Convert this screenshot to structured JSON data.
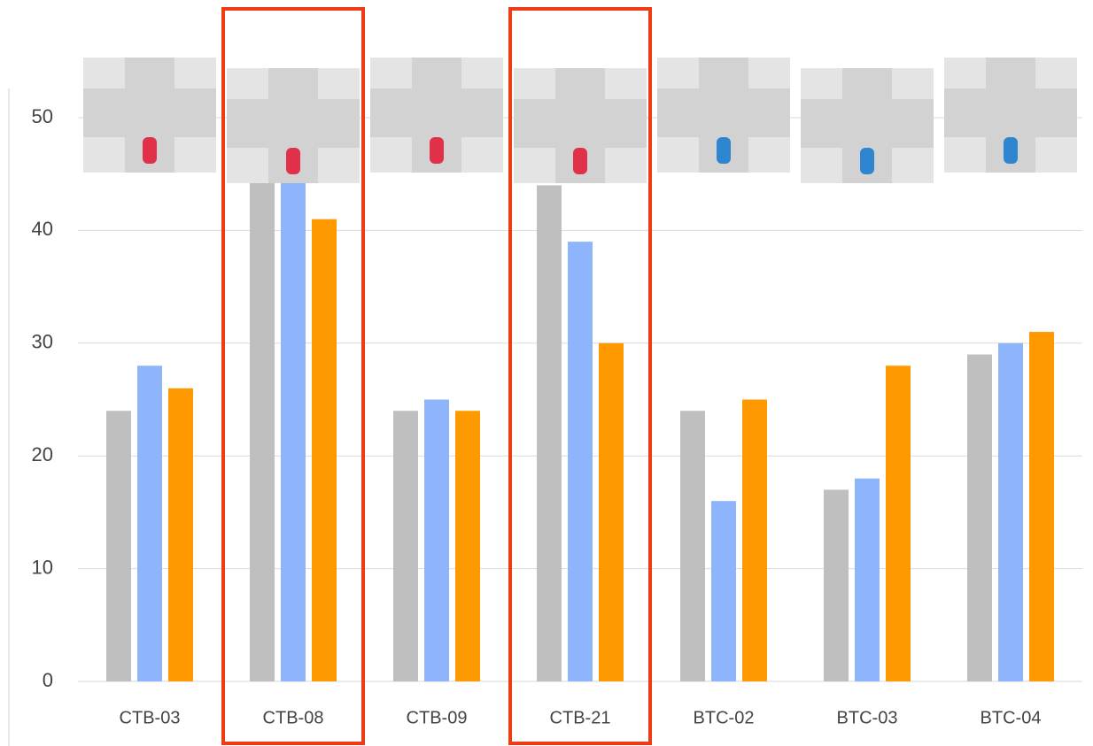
{
  "chart_data": {
    "type": "bar",
    "categories": [
      "CTB-03",
      "CTB-08",
      "CTB-09",
      "CTB-21",
      "BTC-02",
      "BTC-03",
      "BTC-04"
    ],
    "series": [
      {
        "color": "#bfbfbf",
        "values": [
          24,
          45,
          24,
          44,
          24,
          17,
          29
        ]
      },
      {
        "color": "#8eb4fb",
        "values": [
          28,
          45,
          25,
          39,
          16,
          18,
          30
        ]
      },
      {
        "color": "#ff9900",
        "values": [
          26,
          41,
          24,
          30,
          25,
          28,
          31
        ]
      }
    ],
    "ylim": [
      0,
      50
    ],
    "yticks": [
      0,
      10,
      20,
      30,
      40,
      50
    ],
    "grid": true
  }
}
